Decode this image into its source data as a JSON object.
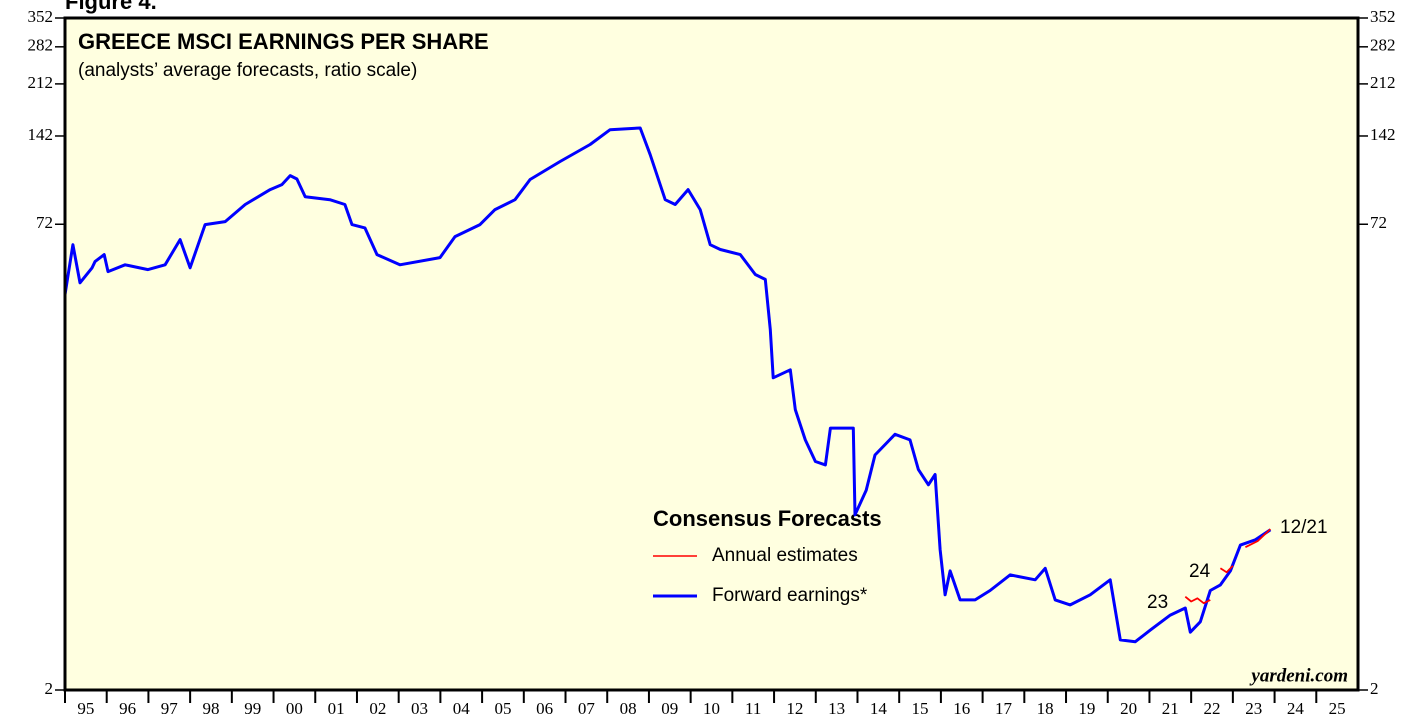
{
  "chart_data": {
    "type": "line",
    "figure_label": "Figure 4.",
    "title": "GREECE MSCI EARNINGS PER SHARE",
    "subtitle": "(analysts’ average forecasts, ratio scale)",
    "legend_title": "Consensus Forecasts",
    "source": "yardeni.com",
    "log_scale": true,
    "ylim": [
      2,
      352
    ],
    "yticks": [
      2,
      72,
      142,
      212,
      282,
      352
    ],
    "xlim": [
      1995,
      2026
    ],
    "xticks": [
      {
        "value": 1995,
        "label": "95"
      },
      {
        "value": 1996,
        "label": "96"
      },
      {
        "value": 1997,
        "label": "97"
      },
      {
        "value": 1998,
        "label": "98"
      },
      {
        "value": 1999,
        "label": "99"
      },
      {
        "value": 2000,
        "label": "00"
      },
      {
        "value": 2001,
        "label": "01"
      },
      {
        "value": 2002,
        "label": "02"
      },
      {
        "value": 2003,
        "label": "03"
      },
      {
        "value": 2004,
        "label": "04"
      },
      {
        "value": 2005,
        "label": "05"
      },
      {
        "value": 2006,
        "label": "06"
      },
      {
        "value": 2007,
        "label": "07"
      },
      {
        "value": 2008,
        "label": "08"
      },
      {
        "value": 2009,
        "label": "09"
      },
      {
        "value": 2010,
        "label": "10"
      },
      {
        "value": 2011,
        "label": "11"
      },
      {
        "value": 2012,
        "label": "12"
      },
      {
        "value": 2013,
        "label": "13"
      },
      {
        "value": 2014,
        "label": "14"
      },
      {
        "value": 2015,
        "label": "15"
      },
      {
        "value": 2016,
        "label": "16"
      },
      {
        "value": 2017,
        "label": "17"
      },
      {
        "value": 2018,
        "label": "18"
      },
      {
        "value": 2019,
        "label": "19"
      },
      {
        "value": 2020,
        "label": "20"
      },
      {
        "value": 2021,
        "label": "21"
      },
      {
        "value": 2022,
        "label": "22"
      },
      {
        "value": 2023,
        "label": "23"
      },
      {
        "value": 2024,
        "label": "24"
      },
      {
        "value": 2025,
        "label": "25"
      }
    ],
    "series": [
      {
        "name": "Annual estimates",
        "color": "#ff0000",
        "x": [
          2021.86,
          2022.0,
          2022.15,
          2022.3,
          2022.46,
          2022.55,
          2022.7,
          2022.85,
          2023.0,
          2023.1,
          2023.3,
          2023.6,
          2023.9
        ],
        "values": [
          4.1,
          3.95,
          4.05,
          3.9,
          4.0,
          null,
          5.1,
          4.95,
          5.2,
          null,
          6.0,
          6.3,
          6.9
        ]
      },
      {
        "name": "Forward earnings*",
        "color": "#0000ff",
        "x": [
          1995.0,
          1995.19,
          1995.36,
          1995.65,
          1995.72,
          1995.94,
          1996.03,
          1996.44,
          1996.99,
          1997.4,
          1997.76,
          1998.0,
          1998.36,
          1998.84,
          1999.32,
          1999.92,
          2000.2,
          2000.4,
          2000.56,
          2000.76,
          2001.35,
          2001.71,
          2001.88,
          2002.19,
          2002.48,
          2003.03,
          2003.99,
          2004.35,
          2004.95,
          2005.31,
          2005.79,
          2006.15,
          2006.87,
          2007.59,
          2008.07,
          2008.79,
          2009.03,
          2009.39,
          2009.63,
          2009.94,
          2010.23,
          2010.47,
          2010.71,
          2011.19,
          2011.55,
          2011.79,
          2011.91,
          2011.98,
          2012.39,
          2012.51,
          2012.75,
          2012.99,
          2013.23,
          2013.35,
          2013.9,
          2013.94,
          2014.21,
          2014.42,
          2014.9,
          2015.26,
          2015.46,
          2015.7,
          2015.86,
          2015.98,
          2016.1,
          2016.22,
          2016.46,
          2016.82,
          2017.18,
          2017.66,
          2018.26,
          2018.5,
          2018.74,
          2019.1,
          2019.58,
          2020.06,
          2020.3,
          2020.66,
          2021.02,
          2021.5,
          2021.86,
          2021.98,
          2022.22,
          2022.46,
          2022.7,
          2022.94,
          2023.18,
          2023.54,
          2023.9
        ],
        "values": [
          41.9,
          61.5,
          45.9,
          51.5,
          54,
          57,
          50,
          52.7,
          50.8,
          52.7,
          64,
          51.5,
          71.8,
          73.5,
          83.8,
          94,
          97.7,
          104.7,
          102,
          89,
          87,
          83.8,
          71.8,
          70,
          57,
          52.7,
          55.7,
          65.5,
          71.8,
          80.6,
          87,
          101.6,
          116.7,
          133,
          149,
          151,
          123,
          87,
          83.8,
          94,
          80.6,
          61.5,
          59.3,
          57,
          48.9,
          47.1,
          32,
          22.1,
          23.5,
          17.3,
          13.7,
          11.6,
          11.3,
          15,
          15,
          7.7,
          9.3,
          12.2,
          14.3,
          13.7,
          10.9,
          9.7,
          10.5,
          5.9,
          4.16,
          5.0,
          4.0,
          4.0,
          4.3,
          4.85,
          4.67,
          5.1,
          4.0,
          3.85,
          4.16,
          4.67,
          2.94,
          2.9,
          3.17,
          3.56,
          3.76,
          3.12,
          3.38,
          4.3,
          4.49,
          5.0,
          6.1,
          6.35,
          6.86
        ]
      }
    ],
    "annotations": [
      {
        "text": "23",
        "color": "#ff0000"
      },
      {
        "text": "24",
        "color": "#ff0000"
      },
      {
        "text": "12/21",
        "color": "#0000ff"
      }
    ]
  }
}
